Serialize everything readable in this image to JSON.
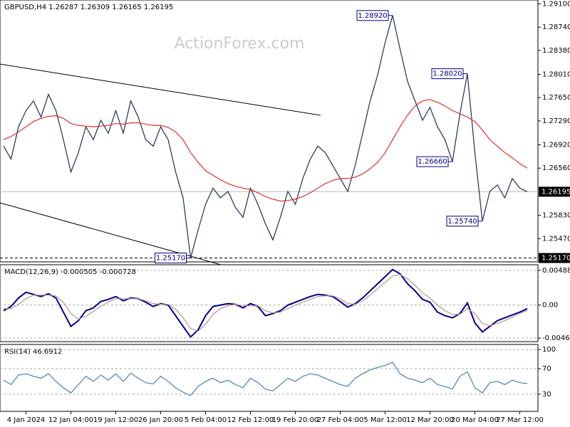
{
  "chart_data": [
    {
      "type": "line",
      "title": "GBPUSD,H4  1.26287 1.26309 1.26165 1.26195",
      "watermark": "ActionForex.com",
      "categories": [
        null,
        null,
        null,
        "4 Jan 2024",
        null,
        null,
        null,
        null,
        null,
        "12 Jan 04:00",
        null,
        null,
        null,
        null,
        null,
        "19 Jan 12:00",
        null,
        null,
        null,
        null,
        null,
        "26 Jan 20:00",
        null,
        null,
        null,
        null,
        null,
        "5 Feb 04:00",
        null,
        null,
        null,
        null,
        null,
        "12 Feb 12:00",
        null,
        null,
        null,
        null,
        null,
        "19 Feb 20:00",
        null,
        null,
        null,
        null,
        null,
        "27 Feb 04:00",
        null,
        null,
        null,
        null,
        null,
        "5 Mar 12:00",
        null,
        null,
        null,
        null,
        null,
        "12 Mar 20:00",
        null,
        null,
        null,
        null,
        null,
        "20 Mar 04:00",
        null,
        null,
        null,
        null,
        null,
        "27 Mar 12:00",
        null
      ],
      "series": [
        {
          "color": "#1f2f4f",
          "values": [
            1.269,
            1.267,
            1.272,
            1.2745,
            1.276,
            1.2735,
            1.277,
            1.2745,
            1.27,
            1.265,
            1.268,
            1.272,
            1.27,
            1.273,
            1.271,
            1.2745,
            1.271,
            1.276,
            1.2735,
            1.27,
            1.269,
            1.272,
            1.27,
            1.265,
            1.261,
            1.2517,
            1.256,
            1.26,
            1.2625,
            1.261,
            1.262,
            1.2595,
            1.258,
            1.2625,
            1.26,
            1.257,
            1.2545,
            1.258,
            1.262,
            1.26,
            1.264,
            1.267,
            1.269,
            1.268,
            1.266,
            1.264,
            1.262,
            1.266,
            1.271,
            1.276,
            1.28,
            1.285,
            1.2892,
            1.284,
            1.279,
            1.276,
            1.273,
            1.275,
            1.272,
            1.27,
            1.2666,
            1.274,
            1.2802,
            1.268,
            1.2574,
            1.262,
            1.263,
            1.261,
            1.264,
            1.2625,
            1.26195
          ]
        },
        {
          "color": "#e0302a",
          "values": [
            1.27,
            1.2705,
            1.2712,
            1.272,
            1.2728,
            1.2733,
            1.2736,
            1.2737,
            1.2733,
            1.2725,
            1.2722,
            1.2721,
            1.272,
            1.2721,
            1.2722,
            1.2725,
            1.2724,
            1.2726,
            1.2726,
            1.2724,
            1.2722,
            1.2722,
            1.2719,
            1.2712,
            1.27,
            1.268,
            1.2665,
            1.2652,
            1.2645,
            1.2638,
            1.2632,
            1.2628,
            1.2625,
            1.2623,
            1.2618,
            1.2612,
            1.2608,
            1.2605,
            1.2606,
            1.2608,
            1.2612,
            1.2618,
            1.2625,
            1.2632,
            1.2637,
            1.264,
            1.264,
            1.2642,
            1.2647,
            1.2655,
            1.2665,
            1.268,
            1.27,
            1.272,
            1.2738,
            1.2752,
            1.276,
            1.2762,
            1.2758,
            1.2752,
            1.2745,
            1.274,
            1.2735,
            1.2728,
            1.2715,
            1.27,
            1.269,
            1.268,
            1.2672,
            1.2663,
            1.2656
          ]
        }
      ],
      "ylim": [
        1.2511,
        1.2916
      ],
      "yticks": [
        {
          "value": 1.291,
          "label": "1.29100"
        },
        {
          "value": 1.2874,
          "label": "1.28740"
        },
        {
          "value": 1.2838,
          "label": "1.28380"
        },
        {
          "value": 1.2801,
          "label": "1.28010"
        },
        {
          "value": 1.2765,
          "label": "1.27650"
        },
        {
          "value": 1.2729,
          "label": "1.27290"
        },
        {
          "value": 1.2692,
          "label": "1.26920"
        },
        {
          "value": 1.2656,
          "label": "1.26560"
        },
        {
          "value": 1.2583,
          "label": "1.25830"
        },
        {
          "value": 1.2547,
          "label": "1.25470"
        }
      ],
      "last_price": {
        "value": 1.26195,
        "label": "1.26195"
      },
      "level": {
        "value": 1.2517,
        "label": "1.25170"
      },
      "annotations": [
        {
          "value": 1.2892,
          "label": "1.28920"
        },
        {
          "value": 1.2802,
          "label": "1.28020"
        },
        {
          "value": 1.2666,
          "label": "1.26660"
        },
        {
          "value": 1.2574,
          "label": "1.25740"
        },
        {
          "value": 1.2517,
          "label": "1.25170"
        }
      ]
    },
    {
      "type": "line",
      "title": "MACD(12,26,9) -0.000505 -0.000728",
      "series": [
        {
          "color": "#00008b",
          "values": [
            -0.0008,
            -0.0002,
            0.001,
            0.0018,
            0.0015,
            0.0012,
            0.0016,
            0.001,
            -0.001,
            -0.003,
            -0.0022,
            -0.0008,
            -0.0004,
            0.0005,
            0.0008,
            0.0012,
            0.0006,
            0.001,
            0.0009,
            0.0004,
            -0.0002,
            0.0002,
            0.0,
            -0.0015,
            -0.003,
            -0.0045,
            -0.0035,
            -0.0015,
            -0.0002,
            0.0,
            0.0002,
            0.0001,
            -0.0004,
            0.0002,
            -0.0002,
            -0.0015,
            -0.0012,
            -0.0008,
            0.0,
            0.0004,
            0.0008,
            0.0012,
            0.0015,
            0.0014,
            0.0012,
            0.0005,
            -0.0003,
            0.0002,
            0.001,
            0.002,
            0.003,
            0.004,
            0.005,
            0.0044,
            0.003,
            0.002,
            0.0008,
            0.0004,
            -0.001,
            -0.0015,
            -0.0018,
            -0.0012,
            0.0003,
            -0.0025,
            -0.0038,
            -0.003,
            -0.0022,
            -0.0018,
            -0.0014,
            -0.001,
            -0.000505
          ]
        },
        {
          "color": "#c09090",
          "values": [
            -0.0005,
            -0.0005,
            0.0001,
            0.0009,
            0.0014,
            0.0014,
            0.0014,
            0.0013,
            0.0004,
            -0.0012,
            -0.002,
            -0.0016,
            -0.0009,
            -0.0002,
            0.0004,
            0.0009,
            0.0009,
            0.0009,
            0.0009,
            0.0006,
            0.0002,
            0.0001,
            0.0001,
            -0.0006,
            -0.0018,
            -0.0033,
            -0.0037,
            -0.0027,
            -0.0013,
            -0.0005,
            -0.0001,
            0.0001,
            -0.0001,
            -0.0001,
            -0.0001,
            -0.0008,
            -0.0011,
            -0.001,
            -0.0005,
            0.0,
            0.0004,
            0.0008,
            0.0012,
            0.0013,
            0.0013,
            0.0009,
            0.0002,
            0.0001,
            0.0006,
            0.0014,
            0.0023,
            0.0032,
            0.0041,
            0.0043,
            0.0037,
            0.0028,
            0.0017,
            0.001,
            0.0,
            -0.0008,
            -0.0013,
            -0.0013,
            -0.0005,
            -0.0012,
            -0.0026,
            -0.0029,
            -0.0026,
            -0.0022,
            -0.0017,
            -0.0012,
            -0.000728
          ]
        }
      ],
      "ylim": [
        -0.00515,
        0.00568
      ],
      "yticks": [
        0.004884,
        {
          "value": 0,
          "label": "0.00"
        },
        -0.004645
      ]
    },
    {
      "type": "line",
      "title": "RSI(14) 46.6912",
      "series": [
        {
          "color": "#4682b4",
          "values": [
            52,
            45,
            60,
            62,
            58,
            55,
            62,
            50,
            40,
            32,
            45,
            58,
            50,
            60,
            52,
            62,
            50,
            63,
            55,
            48,
            46,
            58,
            50,
            40,
            33,
            28,
            42,
            50,
            55,
            48,
            52,
            45,
            40,
            55,
            48,
            38,
            35,
            45,
            55,
            50,
            58,
            62,
            60,
            55,
            50,
            45,
            42,
            55,
            62,
            68,
            72,
            75,
            80,
            62,
            55,
            52,
            48,
            55,
            45,
            42,
            38,
            58,
            65,
            40,
            32,
            48,
            50,
            45,
            52,
            48,
            46.6912
          ]
        }
      ],
      "ylim": [
        3,
        108
      ],
      "yticks": [
        100,
        70,
        30
      ]
    }
  ]
}
